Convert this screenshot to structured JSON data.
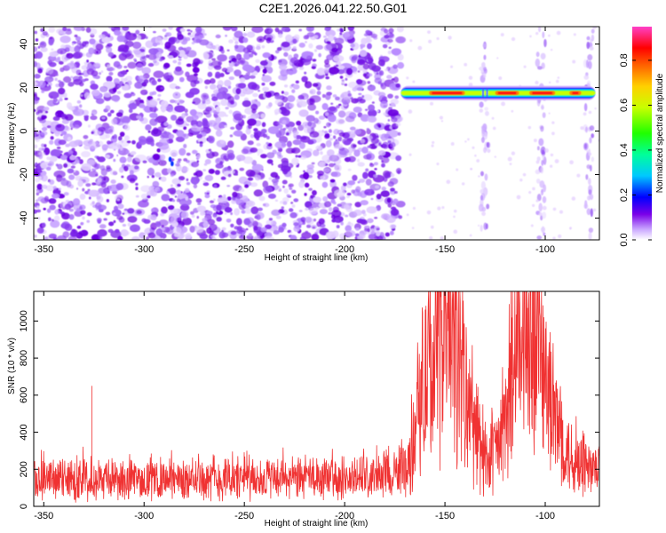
{
  "title": "C2E1.2026.041.22.50.G01",
  "chart_data": [
    {
      "type": "heatmap",
      "xlabel": "Height of straight line (km)",
      "ylabel": "Frequency (Hz)",
      "xlim": [
        -355,
        -73
      ],
      "ylim": [
        -50,
        48
      ],
      "x_ticks": [
        -350,
        -300,
        -250,
        -200,
        -150,
        -100
      ],
      "y_ticks": [
        -40,
        -20,
        0,
        20,
        40
      ],
      "colorbar": {
        "label": "Normalized spectral amplitude",
        "range": [
          0,
          0.95
        ],
        "ticks": [
          0.0,
          0.2,
          0.4,
          0.6,
          0.8
        ],
        "tick_labels": [
          "0.0",
          "0.2",
          "0.4",
          "0.6",
          "0.8"
        ]
      },
      "features": [
        {
          "name": "signal band",
          "x_range": [
            -172,
            -75
          ],
          "frequency": 17.5,
          "peak_amplitude": 0.9
        },
        {
          "name": "vertical streak",
          "x": -130,
          "frequency_range": [
            -50,
            48
          ]
        },
        {
          "name": "vertical streak",
          "x": -102,
          "frequency_range": [
            -50,
            48
          ]
        },
        {
          "name": "vertical streak",
          "x": -78,
          "frequency_range": [
            -50,
            48
          ]
        }
      ],
      "noise_region_x": [
        -355,
        -172
      ],
      "grid": false
    },
    {
      "type": "line",
      "xlabel": "Height of straight line (km)",
      "ylabel": "SNR (10 * v/v)",
      "xlim": [
        -355,
        -73
      ],
      "ylim": [
        0,
        1160
      ],
      "x_ticks": [
        -350,
        -300,
        -250,
        -200,
        -150,
        -100
      ],
      "y_ticks": [
        0,
        200,
        400,
        600,
        800,
        1000
      ],
      "color": "#f03232",
      "series": [
        {
          "x": [
            -355,
            -330,
            -300,
            -270,
            -240,
            -210,
            -190,
            -175,
            -168,
            -163,
            -158,
            -153,
            -148,
            -143,
            -138,
            -133,
            -128,
            -123,
            -118,
            -113,
            -108,
            -105,
            -102,
            -97,
            -92,
            -87,
            -82,
            -77,
            -73
          ],
          "y": [
            140,
            150,
            145,
            140,
            150,
            145,
            155,
            160,
            230,
            560,
            720,
            880,
            980,
            800,
            500,
            330,
            260,
            330,
            520,
            780,
            960,
            1080,
            820,
            500,
            360,
            260,
            230,
            200,
            180
          ]
        }
      ],
      "grid": false
    }
  ]
}
